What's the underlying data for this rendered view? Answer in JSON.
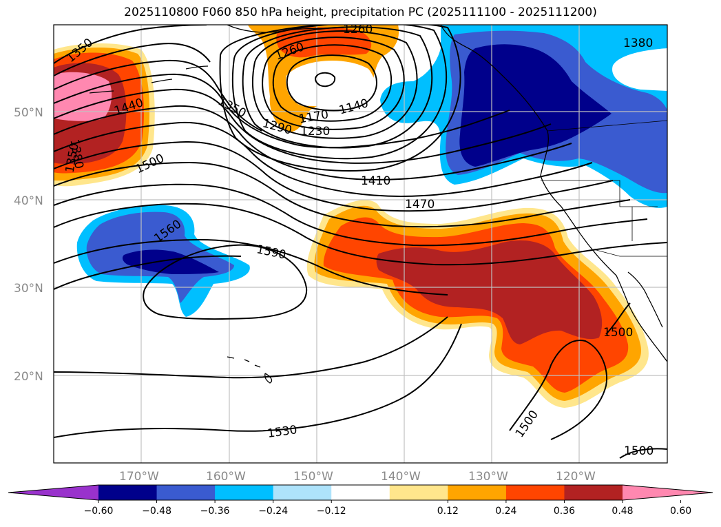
{
  "title": "2025110800 F060 850 hPa height, precipitation PC (2025111100 - 2025111200)",
  "lat_labels": [
    "50°N",
    "40°N",
    "30°N",
    "20°N"
  ],
  "lon_labels": [
    "170°W",
    "160°W",
    "150°W",
    "140°W",
    "130°W",
    "120°W"
  ],
  "colorbar": {
    "ticks": [
      "−0.60",
      "−0.48",
      "−0.36",
      "−0.24",
      "−0.12",
      "0.12",
      "0.24",
      "0.36",
      "0.48",
      "0.60"
    ],
    "colors": [
      "#9932cc",
      "#00008b",
      "#3a5bd0",
      "#00bfff",
      "#aee3fb",
      "#ffffff",
      "#ffe68c",
      "#ffa500",
      "#ff4500",
      "#b22222",
      "#ff88b0"
    ]
  },
  "contour_labels": [
    "1350",
    "1350",
    "1350",
    "1380",
    "1380",
    "1440",
    "1500",
    "1260",
    "1260",
    "1140",
    "1170",
    "1230",
    "1290",
    "1410",
    "1470",
    "1560",
    "1590",
    "1500",
    "1500",
    "1530",
    "1500"
  ]
}
